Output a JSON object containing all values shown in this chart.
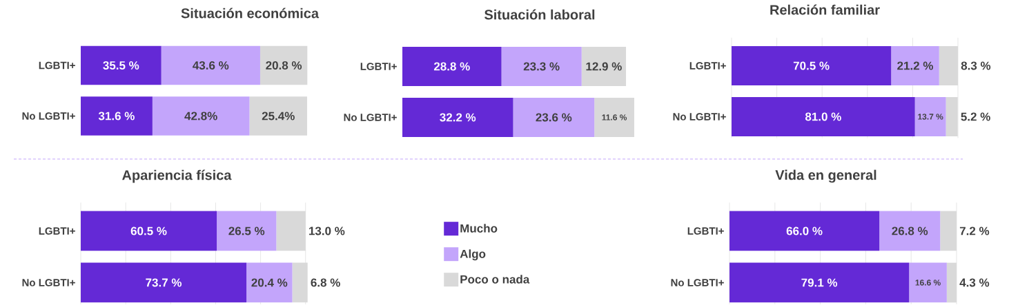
{
  "chart_data": [
    {
      "type": "bar",
      "orientation": "horizontal",
      "stacked": true,
      "title": "Situación económica",
      "categories": [
        "LGBTI+",
        "No LGBTI+"
      ],
      "tick_labels": "y",
      "series": [
        {
          "color": "#6429d6",
          "values": [
            35.5,
            31.6
          ],
          "value_labels": [
            "35.5 %",
            "31.6 %"
          ]
        },
        {
          "color": "#c3a5fb",
          "values": [
            43.6,
            42.8
          ],
          "value_labels": [
            "43.6 %",
            "42.8%"
          ]
        },
        {
          "color": "#d9d9d9",
          "values": [
            20.8,
            25.4
          ],
          "value_labels": [
            "20.8 %",
            "25.4%"
          ]
        }
      ]
    },
    {
      "type": "bar",
      "orientation": "horizontal",
      "stacked": true,
      "title": "Situación laboral",
      "categories": [
        "LGBTI+",
        "No LGBTI+"
      ],
      "tick_labels": "y",
      "series": [
        {
          "color": "#6429d6",
          "values": [
            28.8,
            32.2
          ],
          "value_labels": [
            "28.8 %",
            "32.2 %"
          ]
        },
        {
          "color": "#c3a5fb",
          "values": [
            23.3,
            23.6
          ],
          "value_labels": [
            "23.3 %",
            "23.6 %"
          ]
        },
        {
          "color": "#d9d9d9",
          "values": [
            12.9,
            11.6
          ],
          "value_labels": [
            "12.9 %",
            "11.6 %"
          ]
        }
      ]
    },
    {
      "type": "bar",
      "orientation": "horizontal",
      "stacked": true,
      "title": "Relación familiar",
      "categories": [
        "LGBTI+",
        "No LGBTI+"
      ],
      "xlim": [
        0,
        100
      ],
      "xticks": [
        {
          "value": 0,
          "label": null
        },
        {
          "value": 20,
          "label": null
        },
        {
          "value": 40,
          "label": null
        },
        {
          "value": 60,
          "label": null
        },
        {
          "value": 80,
          "label": null
        },
        {
          "value": 100,
          "label": null
        }
      ],
      "grid": "x",
      "tick_labels": "y",
      "series": [
        {
          "color": "#6429d6",
          "values": [
            70.5,
            81.0
          ],
          "value_labels": [
            "70.5 %",
            "81.0 %"
          ]
        },
        {
          "color": "#c3a5fb",
          "values": [
            21.2,
            13.7
          ],
          "value_labels": [
            "21.2 %",
            "13.7 %"
          ]
        },
        {
          "color": "#d9d9d9",
          "values": [
            8.3,
            5.2
          ],
          "value_labels": [
            "8.3 %",
            "5.2 %"
          ]
        }
      ]
    },
    {
      "type": "bar",
      "orientation": "horizontal",
      "stacked": true,
      "title": "Apariencia física",
      "categories": [
        "LGBTI+",
        "No LGBTI+"
      ],
      "xlim": [
        0,
        101
      ],
      "xticks": [
        {
          "value": 0,
          "label": null
        },
        {
          "value": 20,
          "label": null
        },
        {
          "value": 40,
          "label": null
        },
        {
          "value": 60,
          "label": null
        },
        {
          "value": 80,
          "label": null
        },
        {
          "value": 100,
          "label": null
        }
      ],
      "grid": "x",
      "tick_labels": "y",
      "legend": "right",
      "series": [
        {
          "name": "Mucho",
          "color": "#6429d6",
          "values": [
            60.5,
            73.7
          ],
          "value_labels": [
            "60.5 %",
            "73.7 %"
          ]
        },
        {
          "name": "Algo",
          "color": "#c3a5fb",
          "values": [
            26.5,
            20.4
          ],
          "value_labels": [
            "26.5 %",
            "20.4 %"
          ]
        },
        {
          "name": "Poco o nada",
          "color": "#d9d9d9",
          "values": [
            13.0,
            6.8
          ],
          "value_labels": [
            "13.0 %",
            "6.8 %"
          ]
        }
      ]
    },
    {
      "type": "bar",
      "orientation": "horizontal",
      "stacked": true,
      "title": "Vida en general",
      "categories": [
        "LGBTI+",
        "No LGBTI+"
      ],
      "xlim": [
        0,
        100
      ],
      "xticks": [
        {
          "value": 0,
          "label": null
        },
        {
          "value": 20,
          "label": null
        },
        {
          "value": 40,
          "label": null
        },
        {
          "value": 60,
          "label": null
        },
        {
          "value": 80,
          "label": null
        },
        {
          "value": 100,
          "label": null
        }
      ],
      "grid": "x",
      "tick_labels": "y",
      "series": [
        {
          "color": "#6429d6",
          "values": [
            66.0,
            79.1
          ],
          "value_labels": [
            "66.0 %",
            "79.1 %"
          ]
        },
        {
          "color": "#c3a5fb",
          "values": [
            26.8,
            16.6
          ],
          "value_labels": [
            "26.8 %",
            "16.6 %"
          ]
        },
        {
          "color": "#d9d9d9",
          "values": [
            7.2,
            4.3
          ],
          "value_labels": [
            "7.2 %",
            "4.3 %"
          ]
        }
      ]
    }
  ]
}
